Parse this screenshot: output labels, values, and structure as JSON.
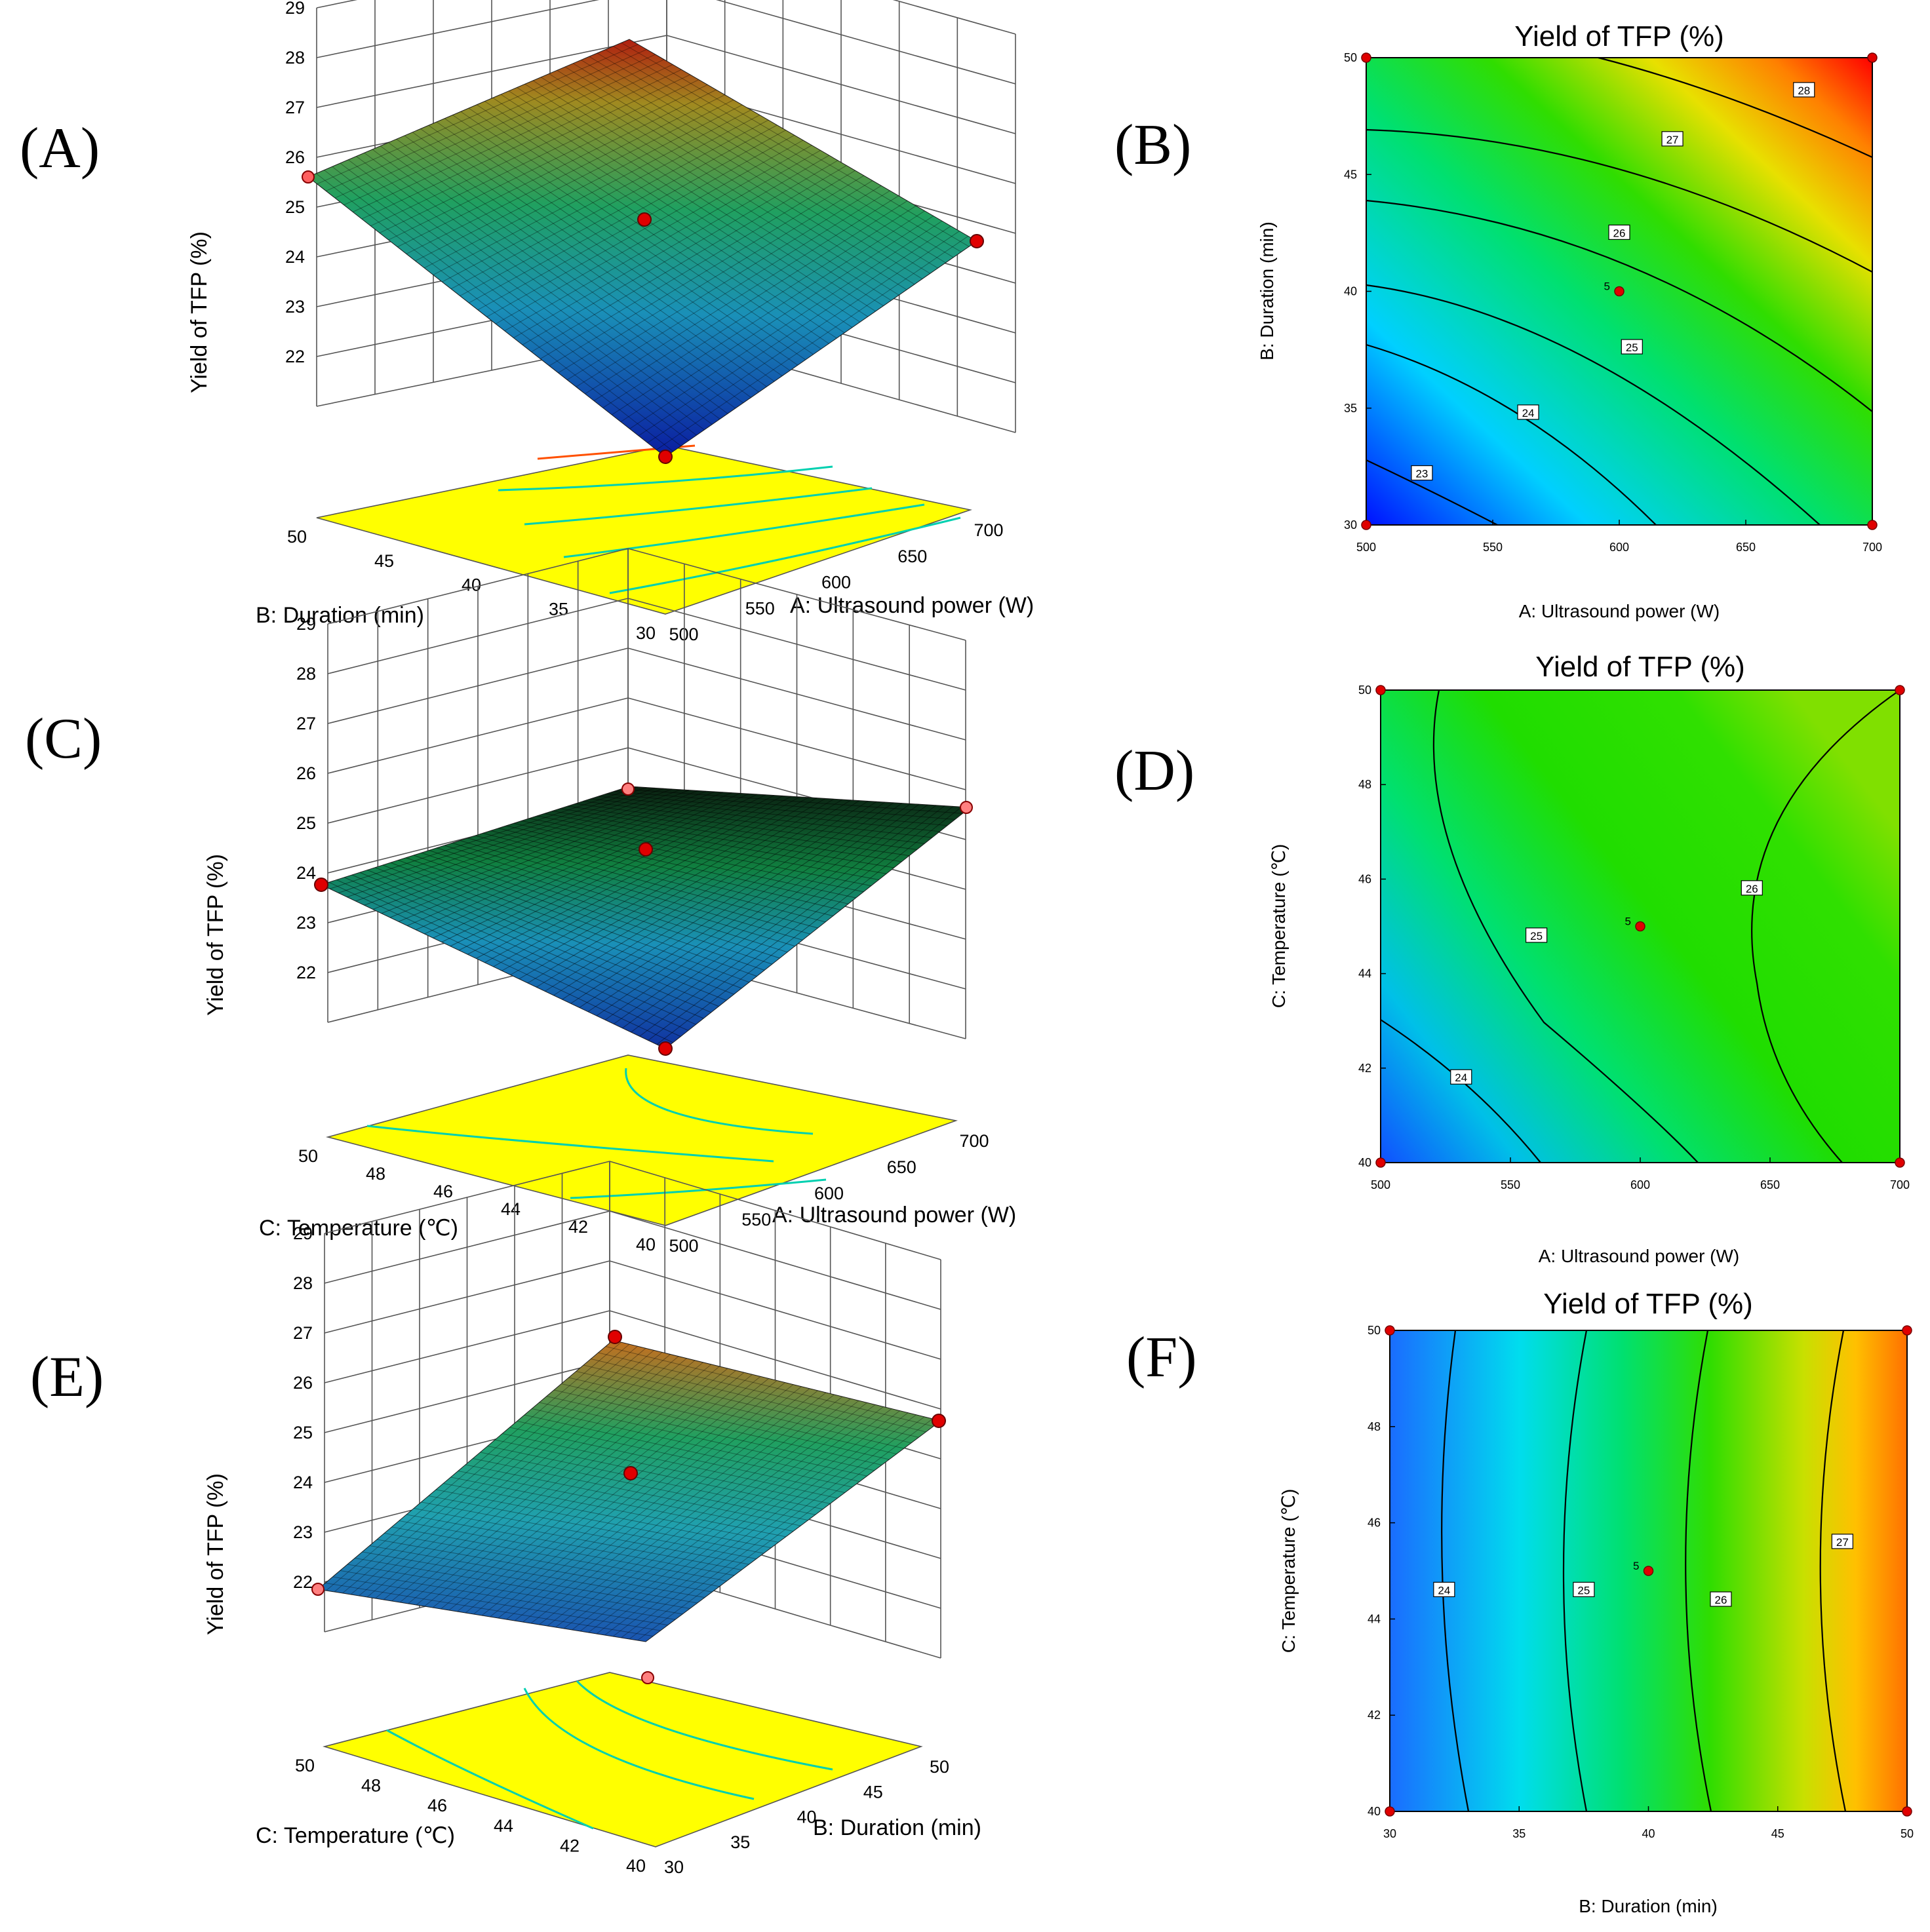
{
  "figure": {
    "panel_labels": [
      "(A)",
      "(B)",
      "(C)",
      "(D)",
      "(E)",
      "(F)"
    ],
    "colors": {
      "low": "#0000ff",
      "mid": "#00e000",
      "high": "#ff0000",
      "floor": "#ffff00",
      "point": "#e00000"
    }
  },
  "chart_data": [
    {
      "panel": "A",
      "type": "surface3d",
      "zlabel": "Yield of TFP (%)",
      "xlabel": "A:  Ultrasound power (W)",
      "ylabel": "B: Duration (min)",
      "z_ticks": [
        "22",
        "23",
        "24",
        "25",
        "26",
        "27",
        "28",
        "29"
      ],
      "x_ticks": [
        "500",
        "550",
        "600",
        "650",
        "700"
      ],
      "y_ticks": [
        "30",
        "35",
        "40",
        "45",
        "50"
      ],
      "zlim": [
        21,
        29
      ],
      "corner_values": {
        "x500_y30": 22.7,
        "x700_y30": 25.4,
        "x500_y50": 26.3,
        "x700_y50": 28.8
      },
      "center_value": 25.2
    },
    {
      "panel": "B",
      "type": "contour",
      "title": "Yield of TFP (%)",
      "xlabel": "A:  Ultrasound power (W)",
      "ylabel": "B: Duration (min)",
      "x_ticks": [
        "500",
        "550",
        "600",
        "650",
        "700"
      ],
      "y_ticks": [
        "30",
        "35",
        "40",
        "45",
        "50"
      ],
      "xlim": [
        500,
        700
      ],
      "ylim": [
        30,
        50
      ],
      "contour_levels": [
        {
          "label": "23",
          "at": [
            522,
            32.2
          ]
        },
        {
          "label": "24",
          "at": [
            564,
            34.8
          ]
        },
        {
          "label": "25",
          "at": [
            605,
            37.6
          ]
        },
        {
          "label": "26",
          "at": [
            600,
            42.5
          ]
        },
        {
          "label": "27",
          "at": [
            621,
            46.5
          ]
        },
        {
          "label": "28",
          "at": [
            673,
            48.6
          ]
        }
      ],
      "center_point": {
        "label": "5",
        "x": 600,
        "y": 40
      },
      "design_points": [
        [
          500,
          30
        ],
        [
          700,
          30
        ],
        [
          500,
          50
        ],
        [
          700,
          50
        ]
      ],
      "range": [
        22.7,
        28.8
      ]
    },
    {
      "panel": "C",
      "type": "surface3d",
      "zlabel": "Yield of TFP (%)",
      "xlabel": "A:  Ultrasound power (W)",
      "ylabel": "C: Temperature (℃)",
      "z_ticks": [
        "22",
        "23",
        "24",
        "25",
        "26",
        "27",
        "28",
        "29"
      ],
      "x_ticks": [
        "500",
        "550",
        "600",
        "650",
        "700"
      ],
      "y_ticks": [
        "40",
        "42",
        "44",
        "46",
        "48",
        "50"
      ],
      "zlim": [
        21,
        29
      ],
      "corner_values": {
        "x500_y40": 23.6,
        "x700_y40": 26.0,
        "x500_y50": 24.9,
        "x700_y50": 26.3
      },
      "center_value": 25.3
    },
    {
      "panel": "D",
      "type": "contour",
      "title": "Yield of TFP (%)",
      "xlabel": "A:  Ultrasound power (W)",
      "ylabel": "C: Temperature (℃)",
      "x_ticks": [
        "500",
        "550",
        "600",
        "650",
        "700"
      ],
      "y_ticks": [
        "40",
        "42",
        "44",
        "46",
        "48",
        "50"
      ],
      "xlim": [
        500,
        700
      ],
      "ylim": [
        40,
        50
      ],
      "contour_levels": [
        {
          "label": "24",
          "at": [
            531,
            41.8
          ]
        },
        {
          "label": "25",
          "at": [
            560,
            44.8
          ]
        },
        {
          "label": "26",
          "at": [
            643,
            45.8
          ]
        }
      ],
      "center_point": {
        "label": "5",
        "x": 600,
        "y": 45
      },
      "design_points": [
        [
          500,
          40
        ],
        [
          700,
          40
        ],
        [
          500,
          50
        ],
        [
          700,
          50
        ]
      ],
      "range": [
        23.6,
        26.3
      ]
    },
    {
      "panel": "E",
      "type": "surface3d",
      "zlabel": "Yield of TFP (%)",
      "xlabel": "B: Duration (min)",
      "ylabel": "C: Temperature (℃)",
      "z_ticks": [
        "22",
        "23",
        "24",
        "25",
        "26",
        "27",
        "28",
        "29"
      ],
      "x_ticks": [
        "30",
        "35",
        "40",
        "45",
        "50"
      ],
      "y_ticks": [
        "40",
        "42",
        "44",
        "46",
        "48",
        "50"
      ],
      "zlim": [
        21,
        29
      ],
      "corner_values": {
        "x30_y40": 23.4,
        "x50_y40": 26.8,
        "x30_y50": 23.1,
        "x50_y50": 27.5
      },
      "center_value": 25.3
    },
    {
      "panel": "F",
      "type": "contour",
      "title": "Yield of TFP (%)",
      "xlabel": "B: Duration (min)",
      "ylabel": "C: Temperature (℃)",
      "x_ticks": [
        "30",
        "35",
        "40",
        "45",
        "50"
      ],
      "y_ticks": [
        "40",
        "42",
        "44",
        "46",
        "48",
        "50"
      ],
      "xlim": [
        30,
        50
      ],
      "ylim": [
        40,
        50
      ],
      "contour_levels": [
        {
          "label": "24",
          "at": [
            32.1,
            44.6
          ]
        },
        {
          "label": "25",
          "at": [
            37.5,
            44.6
          ]
        },
        {
          "label": "26",
          "at": [
            42.8,
            44.4
          ]
        },
        {
          "label": "27",
          "at": [
            47.5,
            45.6
          ]
        }
      ],
      "center_point": {
        "label": "5",
        "x": 40,
        "y": 45
      },
      "design_points": [
        [
          30,
          40
        ],
        [
          50,
          40
        ],
        [
          30,
          50
        ],
        [
          50,
          50
        ]
      ],
      "range": [
        23.1,
        27.5
      ]
    }
  ]
}
